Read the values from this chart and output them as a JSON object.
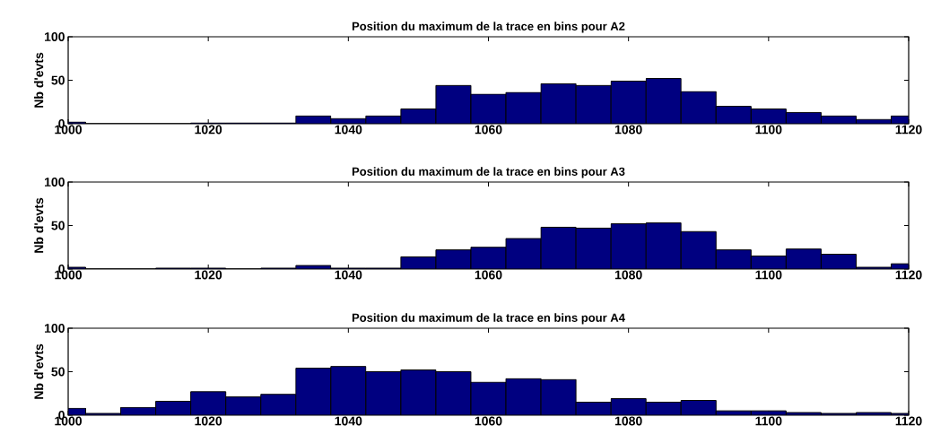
{
  "chart_data": [
    {
      "type": "histogram",
      "title": "Position du maximum de la trace en bins pour A2",
      "ylabel": "Nb d'evts",
      "color": "#000080",
      "grid": false,
      "bins": [
        1000,
        1002.5,
        1017.5,
        1022.5,
        1027.5,
        1032.5,
        1037.5,
        1042.5,
        1047.5,
        1052.5,
        1057.5,
        1062.5,
        1067.5,
        1072.5,
        1077.5,
        1082.5,
        1087.5,
        1092.5,
        1097.5,
        1102.5,
        1107.5,
        1112.5,
        1117.5,
        1120
      ],
      "values": [
        2,
        0,
        1,
        1,
        1,
        9,
        6,
        9,
        17,
        44,
        34,
        36,
        46,
        44,
        49,
        52,
        37,
        20,
        17,
        13,
        9,
        5,
        9
      ],
      "xlim": [
        1000,
        1120
      ],
      "ylim": [
        0,
        100
      ],
      "xticks": [
        1000,
        1020,
        1040,
        1060,
        1080,
        1100,
        1120
      ],
      "yticks": [
        0,
        50,
        100
      ]
    },
    {
      "type": "histogram",
      "title": "Position du maximum de la trace en bins pour A3",
      "ylabel": "Nb d'evts",
      "color": "#000080",
      "grid": false,
      "bins": [
        1000,
        1002.5,
        1012.5,
        1017.5,
        1022.5,
        1027.5,
        1032.5,
        1037.5,
        1042.5,
        1047.5,
        1052.5,
        1057.5,
        1062.5,
        1067.5,
        1072.5,
        1077.5,
        1082.5,
        1087.5,
        1092.5,
        1097.5,
        1102.5,
        1107.5,
        1112.5,
        1117.5,
        1120
      ],
      "values": [
        2,
        0,
        1,
        1,
        0,
        1,
        4,
        1,
        1,
        14,
        22,
        25,
        35,
        48,
        47,
        52,
        53,
        43,
        22,
        15,
        23,
        17,
        2,
        6
      ],
      "xlim": [
        1000,
        1120
      ],
      "ylim": [
        0,
        100
      ],
      "xticks": [
        1000,
        1020,
        1040,
        1060,
        1080,
        1100,
        1120
      ],
      "yticks": [
        0,
        50,
        100
      ]
    },
    {
      "type": "histogram",
      "title": "Position du maximum de la trace en bins pour A4",
      "ylabel": "Nb d'evts",
      "color": "#000080",
      "grid": false,
      "bins": [
        1000,
        1002.5,
        1007.5,
        1012.5,
        1017.5,
        1022.5,
        1027.5,
        1032.5,
        1037.5,
        1042.5,
        1047.5,
        1052.5,
        1057.5,
        1062.5,
        1067.5,
        1072.5,
        1077.5,
        1082.5,
        1087.5,
        1092.5,
        1097.5,
        1102.5,
        1107.5,
        1112.5,
        1117.5,
        1120
      ],
      "values": [
        8,
        2,
        9,
        16,
        27,
        21,
        24,
        54,
        56,
        50,
        52,
        50,
        38,
        42,
        41,
        15,
        19,
        15,
        17,
        5,
        5,
        3,
        2,
        3,
        2
      ],
      "xlim": [
        1000,
        1120
      ],
      "ylim": [
        0,
        100
      ],
      "xticks": [
        1000,
        1020,
        1040,
        1060,
        1080,
        1100,
        1120
      ],
      "yticks": [
        0,
        50,
        100
      ]
    }
  ]
}
